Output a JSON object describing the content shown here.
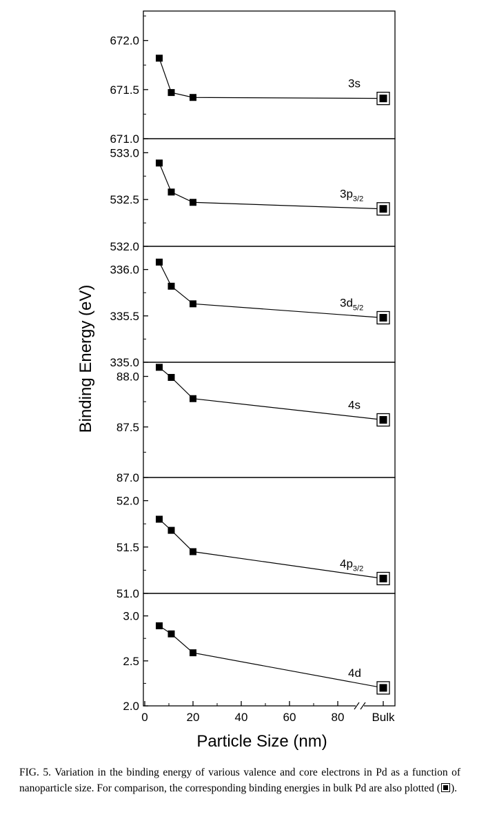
{
  "chart_data": {
    "type": "line",
    "xlabel": "Particle Size (nm)",
    "ylabel": "Binding Energy (eV)",
    "x_ticks": [
      "0",
      "20",
      "40",
      "60",
      "80"
    ],
    "bulk_tick_label": "Bulk",
    "x_axis_break": true,
    "xlim": [
      0,
      100
    ],
    "x": [
      6,
      11,
      20
    ],
    "bulk_marker": "open square with filled center",
    "marker": "filled square",
    "grid": false,
    "panels": [
      {
        "label_main": "3s",
        "label_sub": "",
        "ylim": [
          671.0,
          672.3
        ],
        "yticks": [
          "671.0",
          "671.5",
          "672.0"
        ],
        "values": [
          671.82,
          671.47,
          671.42
        ],
        "bulk": 671.41
      },
      {
        "label_main": "3p",
        "label_sub": "3/2",
        "ylim": [
          532.0,
          533.15
        ],
        "yticks": [
          "532.0",
          "532.5",
          "533.0"
        ],
        "values": [
          532.89,
          532.58,
          532.47
        ],
        "bulk": 532.4
      },
      {
        "label_main": "3d",
        "label_sub": "5/2",
        "ylim": [
          335.0,
          336.25
        ],
        "yticks": [
          "335.0",
          "335.5",
          "336.0"
        ],
        "values": [
          336.08,
          335.82,
          335.63
        ],
        "bulk": 335.48
      },
      {
        "label_main": "4s",
        "label_sub": "",
        "ylim": [
          87.0,
          88.14
        ],
        "yticks": [
          "87.0",
          "87.5",
          "88.0"
        ],
        "values": [
          88.09,
          87.99,
          87.78
        ],
        "bulk": 87.57
      },
      {
        "label_main": "4p",
        "label_sub": "3/2",
        "ylim": [
          51.0,
          52.25
        ],
        "yticks": [
          "51.0",
          "51.5",
          "52.0"
        ],
        "values": [
          51.8,
          51.68,
          51.45
        ],
        "bulk": 51.16
      },
      {
        "label_main": "4d",
        "label_sub": "",
        "ylim": [
          2.0,
          3.25
        ],
        "yticks": [
          "2.0",
          "2.5",
          "3.0"
        ],
        "values": [
          2.89,
          2.8,
          2.59
        ],
        "bulk": 2.2
      }
    ]
  },
  "caption": {
    "text": "FIG. 5. Variation in the binding energy of various valence and core electrons in Pd as a function of nanoparticle size. For comparison, the corresponding binding energies in bulk Pd are also plotted (",
    "text_end": ")."
  }
}
